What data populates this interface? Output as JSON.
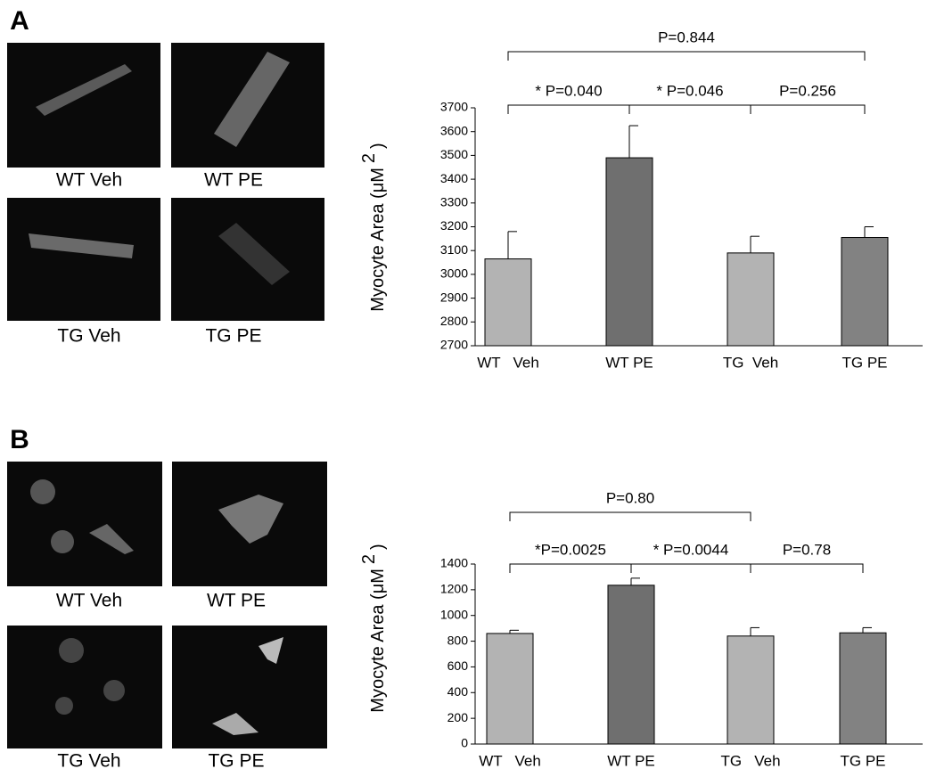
{
  "panels": [
    {
      "label": "A",
      "images": [
        "WT Veh",
        "WT PE",
        "TG Veh",
        "TG PE"
      ]
    },
    {
      "label": "B",
      "images": [
        "WT Veh",
        "WT PE",
        "TG  Veh",
        "TG PE"
      ]
    }
  ],
  "chart_data": [
    {
      "type": "bar",
      "ylabel": "Myocyte Area (μM",
      "ylabel_sup": "2",
      "ylabel_end": ")",
      "categories": [
        "WT   Veh",
        "WT PE",
        "TG  Veh",
        "TG PE"
      ],
      "values": [
        3065,
        3490,
        3090,
        3155
      ],
      "errors": [
        115,
        135,
        70,
        45
      ],
      "colors": [
        "#b3b3b3",
        "#6f6f6f",
        "#b3b3b3",
        "#828282"
      ],
      "ylim": [
        2700,
        3700
      ],
      "yticks": [
        2700,
        2800,
        2900,
        3000,
        3100,
        3200,
        3300,
        3400,
        3500,
        3600,
        3700
      ],
      "comparisons": [
        {
          "label": "P=0.844",
          "between": [
            0,
            3
          ]
        },
        {
          "label": "* P=0.040",
          "between": [
            0,
            1
          ]
        },
        {
          "label": "* P=0.046",
          "between": [
            1,
            2
          ]
        },
        {
          "label": "P=0.256",
          "between": [
            2,
            3
          ]
        }
      ]
    },
    {
      "type": "bar",
      "ylabel": "Myocyte Area (μM",
      "ylabel_sup": "2",
      "ylabel_end": ")",
      "categories": [
        "WT   Veh",
        "WT PE",
        "TG   Veh",
        "TG PE"
      ],
      "values": [
        860,
        1235,
        840,
        865
      ],
      "errors": [
        25,
        55,
        65,
        40
      ],
      "colors": [
        "#b3b3b3",
        "#6f6f6f",
        "#b3b3b3",
        "#828282"
      ],
      "ylim": [
        0,
        1400
      ],
      "yticks": [
        0,
        200,
        400,
        600,
        800,
        1000,
        1200,
        1400
      ],
      "comparisons": [
        {
          "label": "P=0.80",
          "between": [
            0,
            2
          ]
        },
        {
          "label": "*P=0.0025",
          "between": [
            0,
            1
          ]
        },
        {
          "label": "* P=0.0044",
          "between": [
            1,
            2
          ]
        },
        {
          "label": "P=0.78",
          "between": [
            2,
            3
          ]
        }
      ]
    }
  ]
}
